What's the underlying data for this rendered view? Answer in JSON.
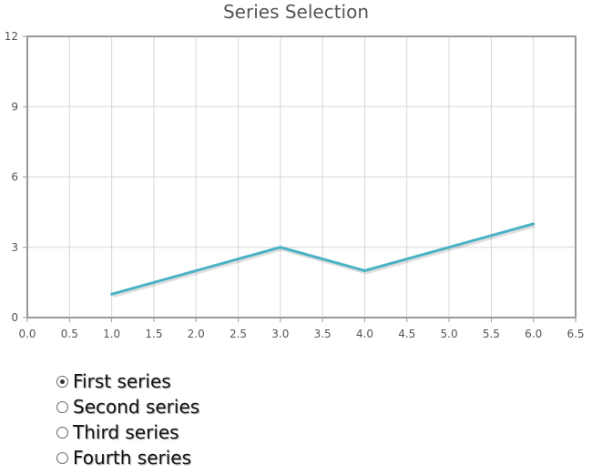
{
  "chart_data": {
    "type": "line",
    "title": "Series Selection",
    "xlabel": "",
    "ylabel": "",
    "xlim": [
      0,
      6.5
    ],
    "ylim": [
      0,
      12
    ],
    "x_ticks": [
      "0.0",
      "0.5",
      "1.0",
      "1.5",
      "2.0",
      "2.5",
      "3.0",
      "3.5",
      "4.0",
      "4.5",
      "5.0",
      "5.5",
      "6.0",
      "6.5"
    ],
    "y_ticks": [
      "0",
      "3",
      "6",
      "9",
      "12"
    ],
    "grid": true,
    "series": [
      {
        "color": "#4bb2c5",
        "x": [
          1,
          3,
          4,
          6
        ],
        "y": [
          1,
          3,
          2,
          4
        ]
      }
    ]
  },
  "series_selector": {
    "selected": 0,
    "options": [
      "First series",
      "Second series",
      "Third series",
      "Fourth series"
    ]
  }
}
